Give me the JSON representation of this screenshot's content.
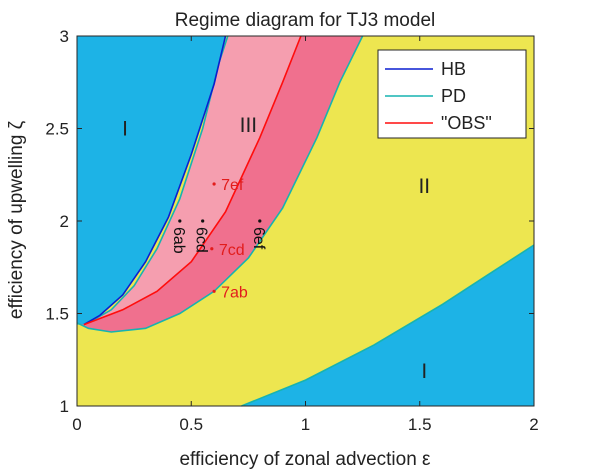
{
  "chart_data": {
    "type": "regime-diagram",
    "title": "Regime diagram for TJ3 model",
    "xlabel": "efficiency of zonal advection ε",
    "ylabel": "efficiency of upwelling ζ",
    "xlim": [
      0,
      2
    ],
    "ylim": [
      1,
      3
    ],
    "xticks": [
      "0",
      "0.5",
      "1",
      "1.5",
      "2"
    ],
    "yticks": [
      "1",
      "1.5",
      "2",
      "2.5",
      "3"
    ],
    "legend": {
      "placement": "top-right",
      "entries": [
        {
          "label": "HB",
          "color": "#0a1fd0"
        },
        {
          "label": "PD",
          "color": "#17b3b0"
        },
        {
          "label": "\"OBS\"",
          "color": "#ff0d0d"
        }
      ]
    },
    "regions": [
      {
        "label": "I",
        "x": 0.21,
        "y": 2.5,
        "color": "#1db3e6"
      },
      {
        "label": "III",
        "x": 0.75,
        "y": 2.52,
        "color": "#f59eaf"
      },
      {
        "label": "II",
        "x": 1.52,
        "y": 2.19,
        "color": "#ede650"
      },
      {
        "label": "I",
        "x": 1.52,
        "y": 1.19,
        "color": "#1db3e6"
      }
    ],
    "colors": {
      "region_I": "#1db3e6",
      "region_II": "#ede650",
      "region_III": "#f59eaf",
      "region_OBS": "#f0708e"
    },
    "curves": {
      "HB": [
        [
          0.03,
          1.44
        ],
        [
          0.1,
          1.49
        ],
        [
          0.2,
          1.6
        ],
        [
          0.3,
          1.78
        ],
        [
          0.4,
          2.02
        ],
        [
          0.5,
          2.36
        ],
        [
          0.6,
          2.74
        ],
        [
          0.65,
          3.0
        ]
      ],
      "PD_left": [
        [
          0.05,
          1.45
        ],
        [
          0.15,
          1.52
        ],
        [
          0.25,
          1.65
        ],
        [
          0.35,
          1.85
        ],
        [
          0.45,
          2.12
        ],
        [
          0.55,
          2.5
        ],
        [
          0.62,
          2.85
        ],
        [
          0.66,
          3.0
        ]
      ],
      "OBS": [
        [
          0.03,
          1.44
        ],
        [
          0.2,
          1.52
        ],
        [
          0.35,
          1.62
        ],
        [
          0.5,
          1.78
        ],
        [
          0.65,
          2.05
        ],
        [
          0.8,
          2.45
        ],
        [
          0.9,
          2.75
        ],
        [
          0.98,
          3.0
        ]
      ],
      "PD_right": [
        [
          0.0,
          1.45
        ],
        [
          0.05,
          1.42
        ],
        [
          0.15,
          1.4
        ],
        [
          0.3,
          1.42
        ],
        [
          0.45,
          1.5
        ],
        [
          0.6,
          1.62
        ],
        [
          0.75,
          1.8
        ],
        [
          0.9,
          2.07
        ],
        [
          1.05,
          2.45
        ],
        [
          1.15,
          2.75
        ],
        [
          1.25,
          3.0
        ]
      ],
      "PD_lower": [
        [
          0.72,
          1.0
        ],
        [
          1.0,
          1.14
        ],
        [
          1.3,
          1.33
        ],
        [
          1.6,
          1.55
        ],
        [
          1.8,
          1.71
        ],
        [
          2.0,
          1.87
        ]
      ]
    },
    "points": [
      {
        "label": "7ef",
        "x": 0.6,
        "y": 2.2,
        "color": "#e21c1c",
        "rotated": false
      },
      {
        "label": "7cd",
        "x": 0.59,
        "y": 1.85,
        "color": "#e21c1c",
        "rotated": false
      },
      {
        "label": "7ab",
        "x": 0.6,
        "y": 1.62,
        "color": "#e21c1c",
        "rotated": false
      },
      {
        "label": "6ab",
        "x": 0.45,
        "y": 2.0,
        "color": "#111111",
        "rotated": true
      },
      {
        "label": "6cd",
        "x": 0.55,
        "y": 2.0,
        "color": "#111111",
        "rotated": true
      },
      {
        "label": "6ef",
        "x": 0.8,
        "y": 2.0,
        "color": "#111111",
        "rotated": true
      }
    ]
  }
}
